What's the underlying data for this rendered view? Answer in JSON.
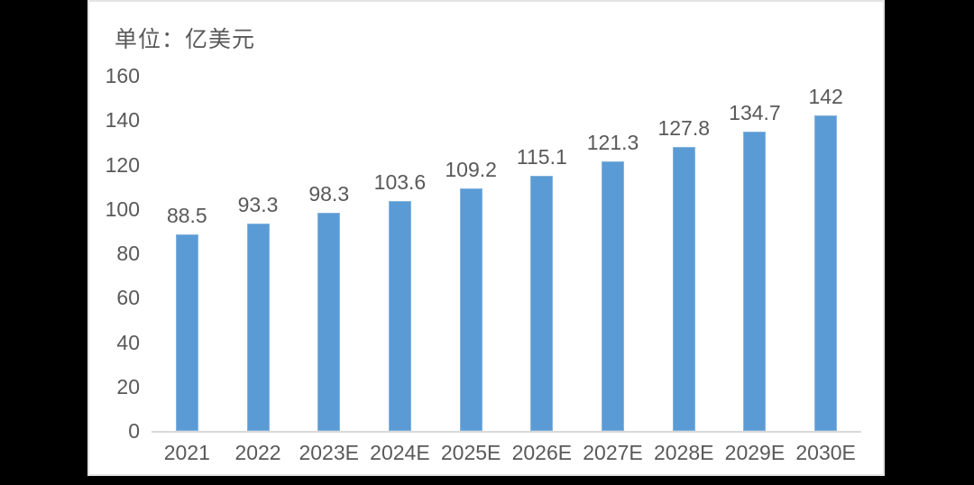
{
  "chart_data": {
    "type": "bar",
    "title": "单位：亿美元",
    "categories": [
      "2021",
      "2022",
      "2023E",
      "2024E",
      "2025E",
      "2026E",
      "2027E",
      "2028E",
      "2029E",
      "2030E"
    ],
    "values": [
      88.5,
      93.3,
      98.3,
      103.6,
      109.2,
      115.1,
      121.3,
      127.8,
      134.7,
      142
    ],
    "data_labels": [
      "88.5",
      "93.3",
      "98.3",
      "103.6",
      "109.2",
      "115.1",
      "121.3",
      "127.8",
      "134.7",
      "142"
    ],
    "xlabel": "",
    "ylabel": "",
    "ylim": [
      0,
      160
    ],
    "ytick_step": 20,
    "yticks": [
      "0",
      "20",
      "40",
      "60",
      "80",
      "100",
      "120",
      "140",
      "160"
    ],
    "grid": false,
    "legend": "none",
    "bar_color": "#5B9BD5",
    "axis_line_color": "#d9d9d9",
    "text_color": "#595959",
    "background_color": "#ffffff",
    "outer_background_color": "#000000"
  }
}
